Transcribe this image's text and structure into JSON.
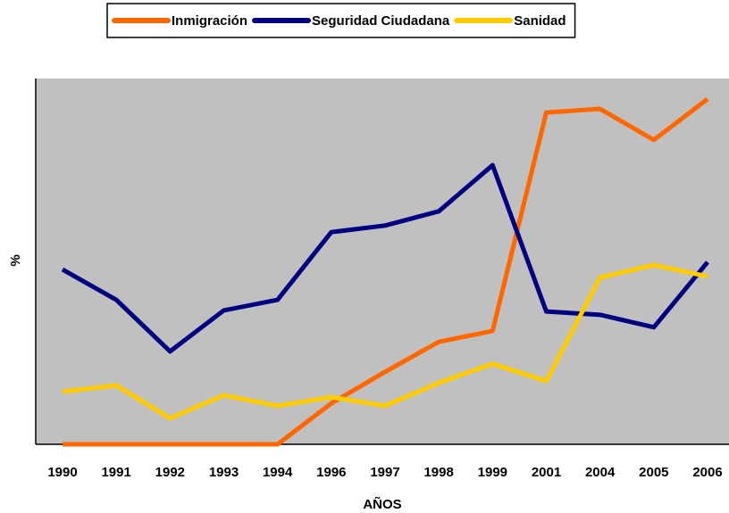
{
  "chart_data": {
    "type": "line",
    "x_label": "AÑOS",
    "y_label": "%",
    "categories": [
      "1990",
      "1991",
      "1992",
      "1993",
      "1994",
      "1996",
      "1997",
      "1998",
      "1999",
      "2001",
      "2004",
      "2005",
      "2006"
    ],
    "series": [
      {
        "name": "Inmigración",
        "color": "#ff6600",
        "values": [
          0,
          0,
          0,
          0,
          0,
          11.2,
          19.8,
          28,
          31,
          90.7,
          91.7,
          83.2,
          94.4
        ]
      },
      {
        "name": "Seguridad Ciudadana",
        "color": "#000080",
        "values": [
          47.8,
          39.5,
          25.4,
          36.6,
          39.5,
          58,
          59.8,
          63.7,
          76.3,
          36.3,
          35.4,
          32,
          49.8
        ]
      },
      {
        "name": "Sanidad",
        "color": "#ffcc00",
        "values": [
          14.4,
          16.1,
          7.1,
          13.4,
          10.5,
          12.9,
          10.5,
          16.8,
          22,
          17.3,
          45.6,
          49,
          45.9
        ]
      }
    ],
    "ylim": [
      0,
      100
    ],
    "plot_background": "#c0c0c0",
    "legend": "top"
  }
}
